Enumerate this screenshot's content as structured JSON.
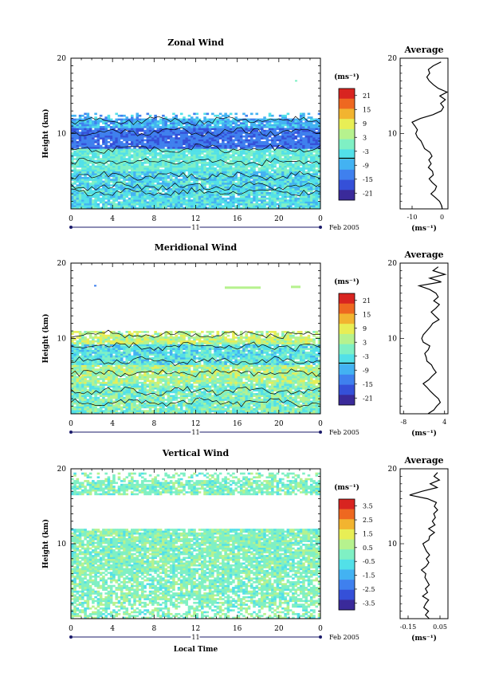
{
  "colors": {
    "scale": [
      "#3a2a9a",
      "#3550d8",
      "#3f80ee",
      "#43b2f2",
      "#52e0e8",
      "#7ff0c4",
      "#b6f28e",
      "#e8ee55",
      "#f2b430",
      "#ee6820",
      "#d82420"
    ],
    "zero_line": "#000000",
    "axis": "#000000",
    "date_line": "#1a1a6a"
  },
  "chart_data": [
    {
      "type": "heatmap",
      "title": "Zonal Wind",
      "ylabel": "Height (km)",
      "xlabel": "",
      "xlim": [
        0,
        24
      ],
      "ylim": [
        0,
        20
      ],
      "x_ticks": [
        "0",
        "4",
        "8",
        "12",
        "16",
        "20",
        "0"
      ],
      "y_ticks": [
        "10",
        "20"
      ],
      "date_label": "11",
      "month_label": "Feb 2005",
      "colorbar": {
        "unit": "(ms⁻¹)",
        "ticks": [
          "21",
          "15",
          "9",
          "3",
          "-3",
          "-9",
          "-15",
          "-21"
        ],
        "zero_index": 5
      },
      "avg": {
        "title": "Average",
        "xlim": [
          -14,
          2
        ],
        "x_ticks": [
          "-10",
          "0"
        ],
        "y_ticks": [
          "10",
          "20"
        ],
        "xlabel": "(ms⁻¹)",
        "profile": [
          [
            0,
            0.5
          ],
          [
            0.5,
            0.2
          ],
          [
            1,
            -1
          ],
          [
            1.5,
            -2.5
          ],
          [
            2,
            -3.5
          ],
          [
            2.5,
            -2
          ],
          [
            3,
            -1.5
          ],
          [
            3.5,
            -3
          ],
          [
            4,
            -4
          ],
          [
            4.5,
            -2.5
          ],
          [
            5,
            -3.5
          ],
          [
            5.5,
            -5
          ],
          [
            6,
            -3.8
          ],
          [
            6.5,
            -4.5
          ],
          [
            7,
            -3.2
          ],
          [
            7.5,
            -4.2
          ],
          [
            8,
            -5.5
          ],
          [
            8.5,
            -6.5
          ],
          [
            9,
            -7
          ],
          [
            9.5,
            -8.5
          ],
          [
            10,
            -9
          ],
          [
            10.5,
            -8
          ],
          [
            11,
            -9.5
          ],
          [
            11.5,
            -10
          ],
          [
            12,
            -7.5
          ],
          [
            12.5,
            -3
          ],
          [
            13,
            -1
          ],
          [
            13.5,
            -0.5
          ],
          [
            14,
            -0.3
          ],
          [
            14.5,
            1
          ],
          [
            15,
            -1.2
          ],
          [
            15.5,
            0.5
          ],
          [
            16,
            -0.8
          ],
          [
            16.5,
            -3
          ],
          [
            17,
            -3.2
          ],
          [
            17.5,
            -4
          ],
          [
            18,
            -5
          ],
          [
            18.5,
            -4.8
          ],
          [
            19,
            -2
          ],
          [
            19.5,
            -1.5
          ]
        ]
      }
    },
    {
      "type": "heatmap",
      "title": "Meridional Wind",
      "ylabel": "Height (km)",
      "xlabel": "",
      "xlim": [
        0,
        24
      ],
      "ylim": [
        0,
        20
      ],
      "x_ticks": [
        "0",
        "4",
        "8",
        "12",
        "16",
        "20",
        "0"
      ],
      "y_ticks": [
        "10",
        "20"
      ],
      "date_label": "11",
      "month_label": "Feb 2005",
      "colorbar": {
        "unit": "(ms⁻¹)",
        "ticks": [
          "21",
          "15",
          "9",
          "3",
          "-3",
          "-9",
          "-15",
          "-21"
        ],
        "zero_index": 5
      },
      "avg": {
        "title": "Average",
        "xlim": [
          -9,
          5
        ],
        "x_ticks": [
          "-8",
          "4"
        ],
        "y_ticks": [
          "10",
          "20"
        ],
        "xlabel": "(ms⁻¹)",
        "profile": [
          [
            0,
            -1
          ],
          [
            0.5,
            0.5
          ],
          [
            1,
            1.5
          ],
          [
            1.5,
            2.5
          ],
          [
            2,
            2
          ],
          [
            2.5,
            1
          ],
          [
            3,
            -0.5
          ],
          [
            3.5,
            -1.5
          ],
          [
            4,
            -2
          ],
          [
            4.5,
            -1
          ],
          [
            5,
            0.5
          ],
          [
            5.5,
            1.5
          ],
          [
            6,
            1
          ],
          [
            6.5,
            0
          ],
          [
            7,
            -1
          ],
          [
            7.5,
            -1.5
          ],
          [
            8,
            -2
          ],
          [
            8.5,
            -1
          ],
          [
            9,
            -0.5
          ],
          [
            9.5,
            -2
          ],
          [
            10,
            -3
          ],
          [
            10.5,
            -2
          ],
          [
            11,
            -1
          ],
          [
            11.5,
            0
          ],
          [
            12,
            0.5
          ],
          [
            12.5,
            1.5
          ],
          [
            13,
            1
          ],
          [
            13.5,
            0.5
          ],
          [
            14,
            1.5
          ],
          [
            14.5,
            2.5
          ],
          [
            15,
            1.5
          ],
          [
            15.5,
            3
          ],
          [
            16,
            2
          ],
          [
            16.5,
            0.5
          ],
          [
            17,
            -2.5
          ],
          [
            17.5,
            2
          ],
          [
            18,
            -1
          ],
          [
            18.5,
            3.5
          ],
          [
            19,
            1
          ],
          [
            19.5,
            2.5
          ]
        ]
      }
    },
    {
      "type": "heatmap",
      "title": "Vertical Wind",
      "ylabel": "Height (km)",
      "xlabel": "Local Time",
      "xlim": [
        0,
        24
      ],
      "ylim": [
        0,
        20
      ],
      "x_ticks": [
        "0",
        "4",
        "8",
        "12",
        "16",
        "20",
        "0"
      ],
      "y_ticks": [
        "10",
        "20"
      ],
      "date_label": "11",
      "month_label": "Feb 2005",
      "colorbar": {
        "unit": "(ms⁻¹)",
        "ticks": [
          "3.5",
          "2.5",
          "1.5",
          "0.5",
          "-0.5",
          "-1.5",
          "-2.5",
          "-3.5"
        ],
        "zero_index": -1
      },
      "avg": {
        "title": "Average",
        "xlim": [
          -0.2,
          0.1
        ],
        "x_ticks": [
          "-0.15",
          "0.05"
        ],
        "y_ticks": [
          "10",
          "20"
        ],
        "xlabel": "(ms⁻¹)",
        "profile": [
          [
            0,
            -0.02
          ],
          [
            0.5,
            -0.04
          ],
          [
            1,
            -0.03
          ],
          [
            1.5,
            -0.05
          ],
          [
            2,
            -0.04
          ],
          [
            2.5,
            -0.02
          ],
          [
            3,
            -0.05
          ],
          [
            3.5,
            -0.03
          ],
          [
            4,
            -0.04
          ],
          [
            4.5,
            -0.02
          ],
          [
            5,
            -0.03
          ],
          [
            5.5,
            -0.05
          ],
          [
            6,
            -0.04
          ],
          [
            6.5,
            -0.06
          ],
          [
            7,
            -0.03
          ],
          [
            7.5,
            -0.02
          ],
          [
            8,
            -0.04
          ],
          [
            8.5,
            -0.01
          ],
          [
            9,
            -0.03
          ],
          [
            9.5,
            -0.05
          ],
          [
            10,
            -0.06
          ],
          [
            10.5,
            -0.02
          ],
          [
            11,
            -0.01
          ],
          [
            11.5,
            0.01
          ],
          [
            12,
            -0.02
          ],
          [
            12.5,
            0.02
          ],
          [
            13,
            0.0
          ],
          [
            13.5,
            0.03
          ],
          [
            14,
            0.01
          ],
          [
            14.5,
            0.04
          ],
          [
            15,
            0.0
          ],
          [
            15.5,
            0.02
          ],
          [
            16,
            -0.04
          ],
          [
            16.5,
            -0.12
          ],
          [
            17,
            -0.05
          ],
          [
            17.5,
            0.02
          ],
          [
            18,
            -0.02
          ],
          [
            18.5,
            0.04
          ],
          [
            19,
            0.01
          ],
          [
            19.5,
            0.03
          ]
        ]
      }
    }
  ]
}
